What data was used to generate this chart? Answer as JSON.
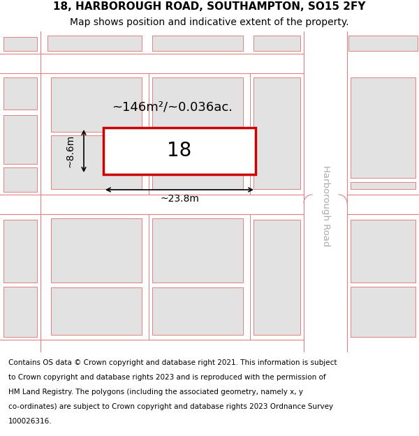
{
  "title": "18, HARBOROUGH ROAD, SOUTHAMPTON, SO15 2FY",
  "subtitle": "Map shows position and indicative extent of the property.",
  "footer_lines": [
    "Contains OS data © Crown copyright and database right 2021. This information is subject",
    "to Crown copyright and database rights 2023 and is reproduced with the permission of",
    "HM Land Registry. The polygons (including the associated geometry, namely x, y",
    "co-ordinates) are subject to Crown copyright and database rights 2023 Ordnance Survey",
    "100026316."
  ],
  "map_bg": "#f0f0f0",
  "road_fill": "#ffffff",
  "plot_line_color": "#e08080",
  "building_fill": "#e2e2e2",
  "highlight_fill": "#ffffff",
  "highlight_edge": "#cc0000",
  "road_label": "Harborough Road",
  "area_label": "~146m²/~0.036ac.",
  "plot_number": "18",
  "dim_width": "~23.8m",
  "dim_height": "~8.6m",
  "title_fontsize": 11,
  "subtitle_fontsize": 10,
  "footer_fontsize": 7.5
}
